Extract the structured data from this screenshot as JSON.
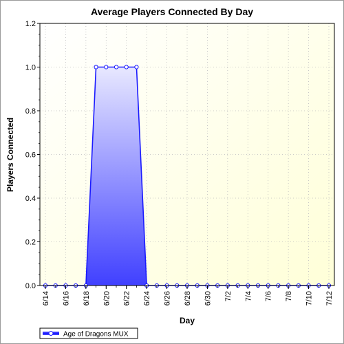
{
  "chart_data": {
    "type": "area",
    "title": "Average Players Connected By Day",
    "xlabel": "Day",
    "ylabel": "Players Connected",
    "ylim": [
      0,
      1.2
    ],
    "yticks": [
      "0.0",
      "0.2",
      "0.4",
      "0.6",
      "0.8",
      "1.0",
      "1.2"
    ],
    "x_tick_labels": [
      "6/14",
      "6/16",
      "6/18",
      "6/20",
      "6/22",
      "6/24",
      "6/26",
      "6/28",
      "6/30",
      "7/2",
      "7/4",
      "7/6",
      "7/8",
      "7/10",
      "7/12"
    ],
    "categories": [
      "6/14",
      "6/15",
      "6/16",
      "6/17",
      "6/18",
      "6/19",
      "6/20",
      "6/21",
      "6/22",
      "6/23",
      "6/24",
      "6/25",
      "6/26",
      "6/27",
      "6/28",
      "6/29",
      "6/30",
      "7/1",
      "7/2",
      "7/3",
      "7/4",
      "7/5",
      "7/6",
      "7/7",
      "7/8",
      "7/9",
      "7/10",
      "7/11",
      "7/12"
    ],
    "series": [
      {
        "name": "Age of Dragons MUX",
        "values": [
          0,
          0,
          0,
          0,
          0,
          1,
          1,
          1,
          1,
          1,
          0,
          0,
          0,
          0,
          0,
          0,
          0,
          0,
          0,
          0,
          0,
          0,
          0,
          0,
          0,
          0,
          0,
          0,
          0
        ]
      }
    ],
    "grid": true,
    "legend_position": "bottom-left",
    "colors": {
      "line": "#1a1aff",
      "fill_top": "#e8e8ff",
      "fill_bottom": "#4040ff",
      "plot_bg_light": "#ffffff",
      "plot_bg_warm": "#ffffd8"
    }
  }
}
